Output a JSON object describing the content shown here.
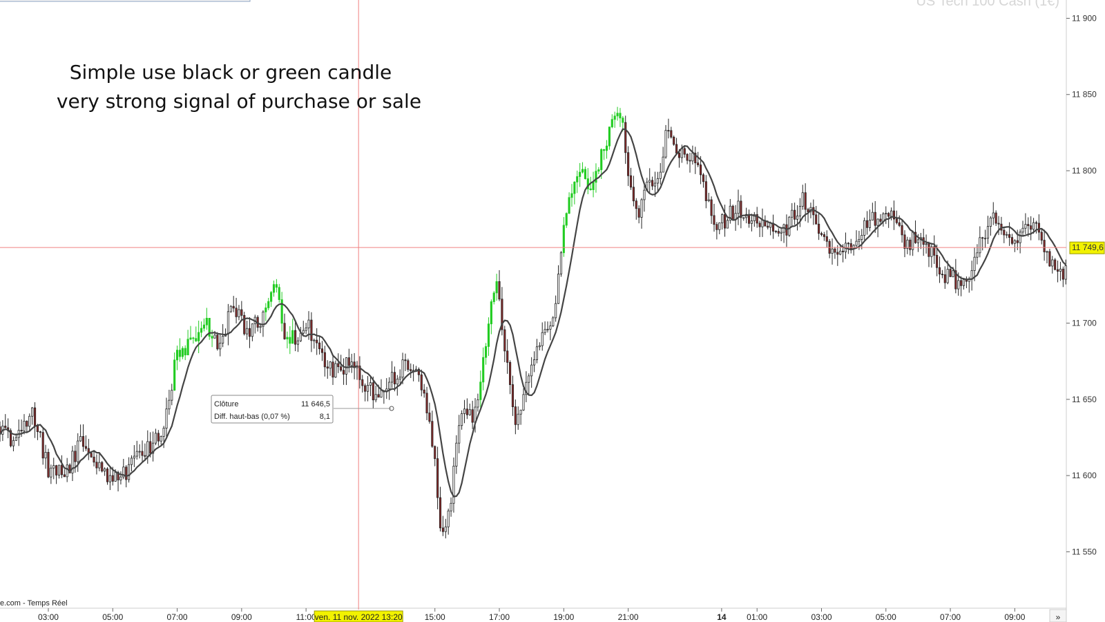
{
  "chart_data": {
    "type": "candlestick",
    "watermark": "US Tech 100 Cash (1€)",
    "annotation_lines": [
      "Simple use black or green candle",
      "very strong signal of purchase or sale"
    ],
    "source_label": "e.com - Temps Réel",
    "y_ticks": [
      {
        "value": 11900,
        "label": "11 900"
      },
      {
        "value": 11850,
        "label": "11 850"
      },
      {
        "value": 11800,
        "label": "11 800"
      },
      {
        "value": 11700,
        "label": "11 700"
      },
      {
        "value": 11650,
        "label": "11 650"
      },
      {
        "value": 11600,
        "label": "11 600"
      },
      {
        "value": 11550,
        "label": "11 550"
      }
    ],
    "ylim": [
      11513,
      11912
    ],
    "x_ticks": [
      {
        "hour": 3,
        "label": "03:00"
      },
      {
        "hour": 5,
        "label": "05:00"
      },
      {
        "hour": 7,
        "label": "07:00"
      },
      {
        "hour": 9,
        "label": "09:00"
      },
      {
        "hour": 11,
        "label": "11:00"
      },
      {
        "hour": 15,
        "label": "15:00"
      },
      {
        "hour": 17,
        "label": "17:00"
      },
      {
        "hour": 19,
        "label": "19:00"
      },
      {
        "hour": 21,
        "label": "21:00"
      },
      {
        "hour": 23.9,
        "label": "14",
        "bold": true
      },
      {
        "hour": 25,
        "label": "01:00"
      },
      {
        "hour": 27,
        "label": "03:00"
      },
      {
        "hour": 29,
        "label": "05:00"
      },
      {
        "hour": 31,
        "label": "07:00"
      },
      {
        "hour": 33,
        "label": "09:00"
      }
    ],
    "xlim_hours": [
      1.5,
      34.6
    ],
    "crosshair": {
      "hour": 12.63,
      "price": 11749.6,
      "date_label": "ven. 11 nov. 2022 13:20",
      "price_label": "11 749,6"
    },
    "tooltip": {
      "rows": [
        {
          "label": "Clôture",
          "value": "11 646,5"
        },
        {
          "label": "Diff. haut-bas (0,07 %)",
          "value": "8,1"
        }
      ]
    },
    "nav_arrow": "»",
    "price_path": [
      [
        1.5,
        11632
      ],
      [
        2.0,
        11622
      ],
      [
        2.5,
        11640
      ],
      [
        3.0,
        11605
      ],
      [
        3.5,
        11600
      ],
      [
        4.0,
        11622
      ],
      [
        4.5,
        11608
      ],
      [
        5.0,
        11598
      ],
      [
        5.5,
        11603
      ],
      [
        6.0,
        11618
      ],
      [
        6.5,
        11625
      ],
      [
        7.0,
        11680
      ],
      [
        7.5,
        11688
      ],
      [
        7.9,
        11700
      ],
      [
        8.3,
        11683
      ],
      [
        8.7,
        11712
      ],
      [
        9.0,
        11700
      ],
      [
        9.3,
        11696
      ],
      [
        9.6,
        11702
      ],
      [
        10.0,
        11730
      ],
      [
        10.3,
        11695
      ],
      [
        10.7,
        11690
      ],
      [
        11.0,
        11700
      ],
      [
        11.3,
        11690
      ],
      [
        11.6,
        11672
      ],
      [
        12.0,
        11667
      ],
      [
        12.4,
        11675
      ],
      [
        12.8,
        11662
      ],
      [
        13.2,
        11652
      ],
      [
        13.6,
        11662
      ],
      [
        14.0,
        11672
      ],
      [
        14.5,
        11665
      ],
      [
        14.9,
        11628
      ],
      [
        15.2,
        11562
      ],
      [
        15.5,
        11585
      ],
      [
        15.8,
        11640
      ],
      [
        16.2,
        11638
      ],
      [
        16.6,
        11690
      ],
      [
        16.9,
        11735
      ],
      [
        17.2,
        11678
      ],
      [
        17.5,
        11628
      ],
      [
        17.9,
        11662
      ],
      [
        18.3,
        11692
      ],
      [
        18.7,
        11702
      ],
      [
        19.0,
        11762
      ],
      [
        19.4,
        11800
      ],
      [
        19.8,
        11790
      ],
      [
        20.2,
        11810
      ],
      [
        20.5,
        11832
      ],
      [
        20.8,
        11840
      ],
      [
        21.1,
        11780
      ],
      [
        21.3,
        11770
      ],
      [
        21.6,
        11800
      ],
      [
        21.9,
        11790
      ],
      [
        22.2,
        11830
      ],
      [
        22.5,
        11810
      ],
      [
        22.8,
        11812
      ],
      [
        23.2,
        11800
      ],
      [
        23.5,
        11780
      ],
      [
        23.7,
        11760
      ],
      [
        24.0,
        11768
      ],
      [
        24.4,
        11775
      ],
      [
        24.8,
        11770
      ],
      [
        25.2,
        11762
      ],
      [
        25.6,
        11758
      ],
      [
        26.0,
        11765
      ],
      [
        26.4,
        11782
      ],
      [
        26.8,
        11765
      ],
      [
        27.2,
        11752
      ],
      [
        27.6,
        11745
      ],
      [
        28.0,
        11750
      ],
      [
        28.4,
        11765
      ],
      [
        28.8,
        11772
      ],
      [
        29.2,
        11768
      ],
      [
        29.6,
        11752
      ],
      [
        30.0,
        11755
      ],
      [
        30.4,
        11745
      ],
      [
        30.8,
        11732
      ],
      [
        31.2,
        11728
      ],
      [
        31.6,
        11735
      ],
      [
        32.0,
        11760
      ],
      [
        32.4,
        11768
      ],
      [
        32.8,
        11750
      ],
      [
        33.2,
        11755
      ],
      [
        33.6,
        11768
      ],
      [
        34.0,
        11745
      ],
      [
        34.4,
        11730
      ],
      [
        34.6,
        11736
      ]
    ],
    "green_ranges_hours": [
      [
        6.9,
        8.1
      ],
      [
        9.7,
        10.3
      ],
      [
        10.4,
        10.6
      ],
      [
        16.4,
        17.0
      ],
      [
        19.0,
        20.9
      ]
    ],
    "ma_window": 9,
    "colors": {
      "bull_green": "#22cc22",
      "bear": "#8b2a2a",
      "wick": "#222222",
      "ma": "#444444",
      "crosshair": "#f05050",
      "price_tag": "#f2f200"
    }
  }
}
